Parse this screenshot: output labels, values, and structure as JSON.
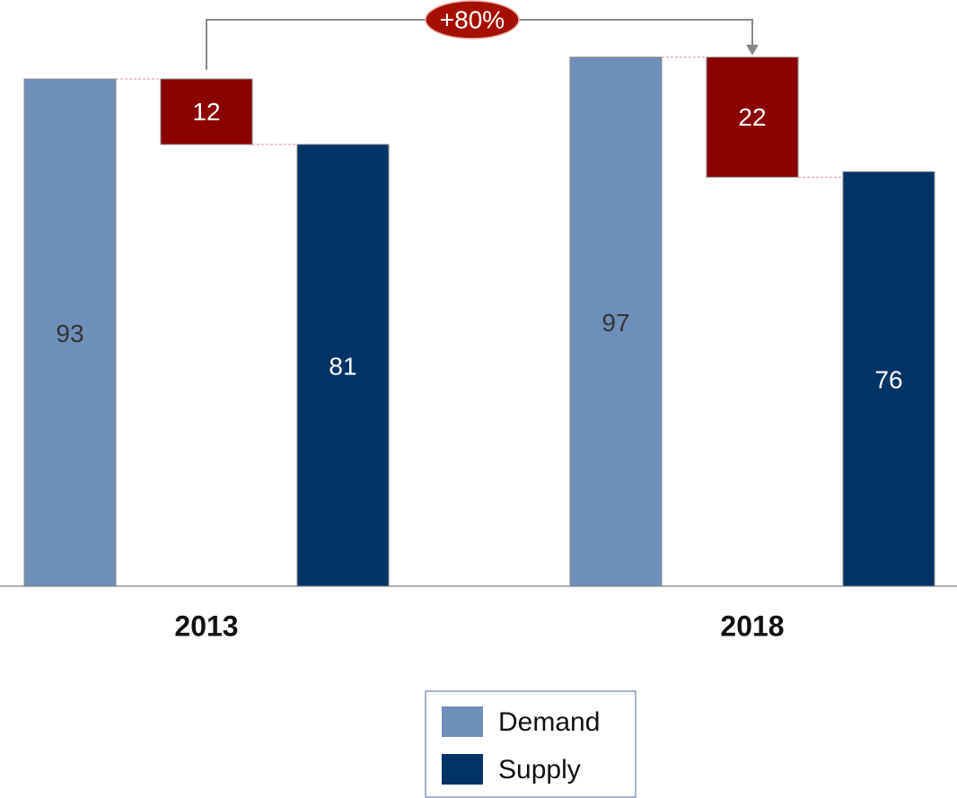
{
  "chart_data": {
    "type": "waterfall-group",
    "categories": [
      "2013",
      "2018"
    ],
    "series": [
      {
        "name": "Demand",
        "color": "#6f8fbb",
        "values": [
          93,
          97
        ]
      },
      {
        "name": "Supply",
        "color": "#003366",
        "values": [
          81,
          76
        ]
      }
    ],
    "gap": {
      "color": "#8b0000",
      "values": [
        12,
        22
      ]
    },
    "annotation": "+80%",
    "ylim": [
      0,
      100
    ]
  }
}
